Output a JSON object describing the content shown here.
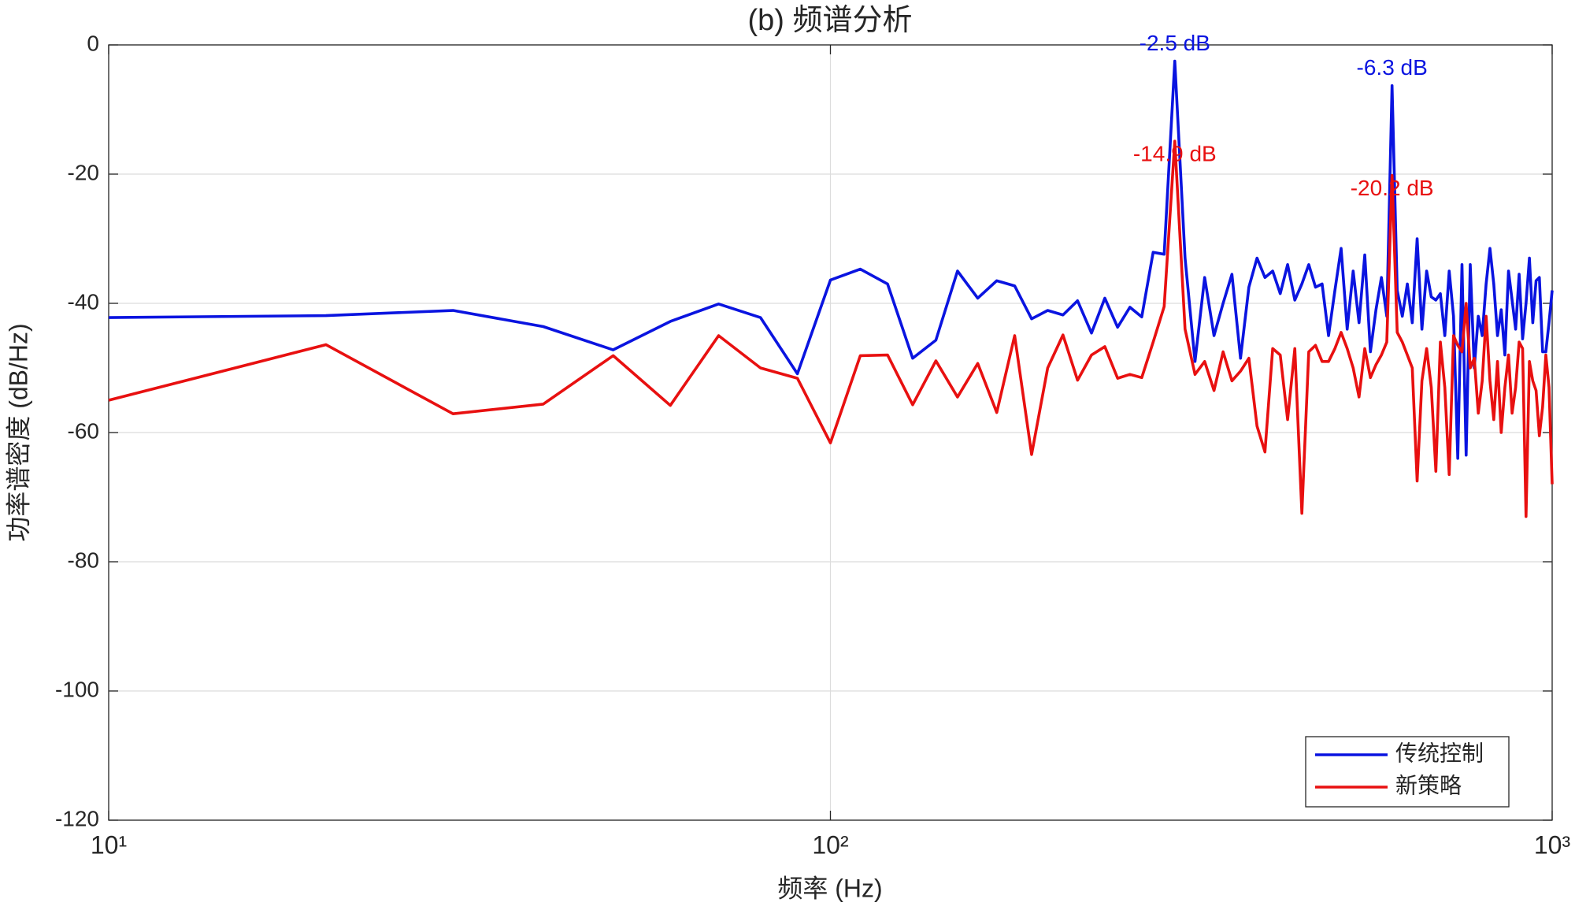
{
  "chart_data": {
    "type": "line",
    "title": "(b) 频谱分析",
    "xlabel": "频率 (Hz)",
    "ylabel": "功率谱密度 (dB/Hz)",
    "x": [
      10,
      20,
      30,
      40,
      50,
      60,
      70,
      80,
      90,
      100,
      110,
      120,
      130,
      140,
      150,
      160,
      170,
      180,
      190,
      200,
      210,
      220,
      230,
      240,
      250,
      260,
      270,
      280,
      290,
      300,
      310,
      320,
      330,
      340,
      350,
      360,
      370,
      380,
      390,
      400,
      410,
      420,
      430,
      440,
      450,
      460,
      470,
      480,
      490,
      500,
      510,
      520,
      530,
      540,
      550,
      560,
      570,
      580,
      590,
      600,
      610,
      620,
      630,
      640,
      650,
      660,
      670,
      680,
      690,
      700,
      710,
      720,
      730,
      740,
      750,
      760,
      770,
      780,
      790,
      800,
      810,
      820,
      830,
      840,
      850,
      860,
      870,
      880,
      890,
      900,
      910,
      920,
      930,
      940,
      950,
      960,
      970,
      980,
      990,
      1000
    ],
    "series": [
      {
        "name": "传统控制",
        "color": "#0a14e0",
        "values": [
          -42.2,
          -41.9,
          -41.1,
          -43.6,
          -47.2,
          -42.8,
          -40.1,
          -42.2,
          -50.9,
          -36.4,
          -34.7,
          -37.0,
          -48.5,
          -45.7,
          -35.0,
          -39.2,
          -36.5,
          -37.3,
          -42.4,
          -41.1,
          -41.8,
          -39.6,
          -44.6,
          -39.2,
          -43.7,
          -40.6,
          -42.1,
          -32.1,
          -32.4,
          -2.5,
          -33,
          -49,
          -36,
          -45,
          -40,
          -35.5,
          -48.5,
          -37.5,
          -33,
          -36,
          -35,
          -38.5,
          -34,
          -39.5,
          -37,
          -34,
          -37.5,
          -37,
          -45,
          -38,
          -31.5,
          -44,
          -35,
          -43,
          -32.5,
          -47.5,
          -41,
          -36,
          -42,
          -6.3,
          -38,
          -42,
          -37,
          -43,
          -30,
          -44,
          -35,
          -39,
          -39.5,
          -38.5,
          -45,
          -35,
          -42,
          -64,
          -34,
          -63.5,
          -34,
          -50,
          -42,
          -45,
          -37,
          -31.5,
          -37,
          -45,
          -41,
          -48,
          -35,
          -39.5,
          -44,
          -35.5,
          -45.5,
          -40,
          -33,
          -43,
          -36.5,
          -36,
          -47.5,
          -47.5,
          -43,
          -38
        ]
      },
      {
        "name": "新策略",
        "color": "#e81010",
        "values": [
          -55,
          -46.4,
          -57.1,
          -55.6,
          -48.1,
          -55.8,
          -45,
          -50,
          -51.6,
          -61.6,
          -48.1,
          -48,
          -55.7,
          -48.9,
          -54.5,
          -49.3,
          -56.9,
          -45,
          -63.4,
          -50,
          -44.9,
          -51.9,
          -48,
          -46.7,
          -51.6,
          -51,
          -51.5,
          -46,
          -40.5,
          -14.9,
          -44,
          -51,
          -49,
          -53.5,
          -47.5,
          -52,
          -50.5,
          -48.5,
          -59,
          -63,
          -47,
          -48,
          -58,
          -47,
          -72.5,
          -47.5,
          -46.5,
          -49,
          -49,
          -47,
          -44.5,
          -47,
          -50,
          -54.5,
          -47,
          -51.5,
          -49.5,
          -48,
          -46,
          -20.2,
          -44.5,
          -46,
          -48,
          -50,
          -67.5,
          -52,
          -47,
          -53,
          -66,
          -46,
          -53,
          -66.5,
          -45,
          -46.5,
          -47.5,
          -40,
          -50,
          -48.5,
          -57,
          -52,
          -42,
          -52,
          -58,
          -49,
          -60,
          -53,
          -48,
          -57,
          -53,
          -46,
          -47,
          -73,
          -49,
          -52,
          -53.5,
          -60.5,
          -56,
          -48,
          -53,
          -68
        ]
      }
    ],
    "annotations": [
      {
        "text": "-2.5 dB",
        "x": 300,
        "y": -2.5,
        "color": "#0a14e0"
      },
      {
        "text": "-14.9 dB",
        "x": 300,
        "y": -14.9,
        "color": "#e81010"
      },
      {
        "text": "-6.3 dB",
        "x": 600,
        "y": -6.3,
        "color": "#0a14e0"
      },
      {
        "text": "-20.2 dB",
        "x": 600,
        "y": -20.2,
        "color": "#e81010"
      }
    ],
    "xscale": "log",
    "xlim": [
      10,
      1000
    ],
    "xticks": [
      {
        "value": 10,
        "label": "10¹"
      },
      {
        "value": 100,
        "label": "10²"
      },
      {
        "value": 1000,
        "label": "10³"
      }
    ],
    "ylim": [
      -120,
      0
    ],
    "yticks": [
      -120,
      -100,
      -80,
      -60,
      -40,
      -20,
      0
    ],
    "grid": true,
    "legend": "southeast"
  }
}
